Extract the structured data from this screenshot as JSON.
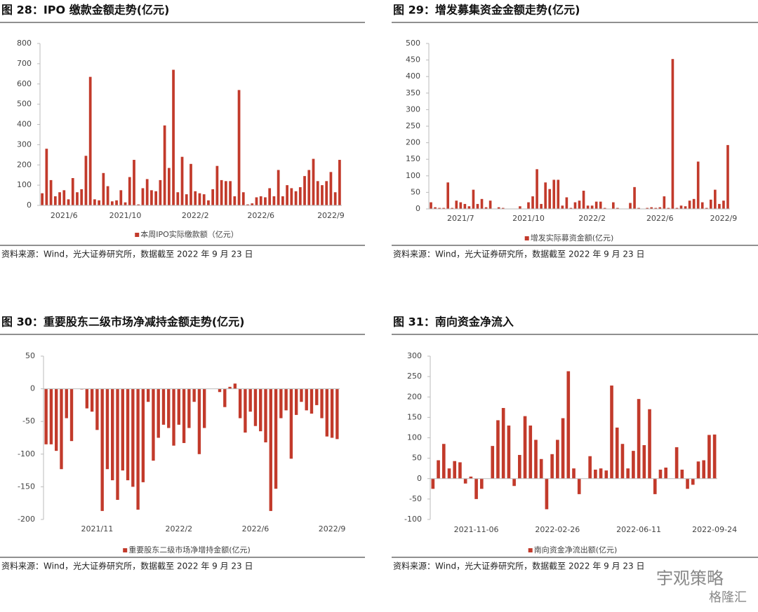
{
  "chart_data": [
    {
      "type": "bar",
      "title": "图 28：IPO 缴款金额走势(亿元)",
      "source": "资料来源：Wind，光大证券研究所，数据截至 2022 年 9 月 23 日",
      "categories": [
        null,
        null,
        null,
        null,
        null,
        "2021/6",
        null,
        null,
        null,
        null,
        null,
        null,
        null,
        null,
        null,
        null,
        null,
        null,
        null,
        "2021/10",
        null,
        null,
        null,
        null,
        null,
        null,
        null,
        null,
        null,
        null,
        null,
        null,
        null,
        null,
        null,
        "2022/2",
        null,
        null,
        null,
        null,
        null,
        null,
        null,
        null,
        null,
        null,
        null,
        null,
        null,
        null,
        "2022/6",
        null,
        null,
        null,
        null,
        null,
        null,
        null,
        null,
        null,
        null,
        null,
        null,
        null,
        null,
        null,
        "2022/9",
        null,
        null
      ],
      "series": [
        {
          "name": "本周IPO实际缴款额（亿元）",
          "color": "#c23a2b",
          "values": [
            60,
            280,
            125,
            45,
            65,
            75,
            30,
            135,
            65,
            80,
            245,
            635,
            30,
            25,
            160,
            95,
            20,
            25,
            75,
            15,
            140,
            225,
            5,
            85,
            130,
            75,
            70,
            125,
            395,
            185,
            670,
            65,
            240,
            55,
            205,
            70,
            60,
            55,
            25,
            80,
            195,
            125,
            120,
            120,
            45,
            570,
            65,
            5,
            10,
            40,
            45,
            40,
            85,
            45,
            175,
            45,
            100,
            85,
            70,
            90,
            145,
            175,
            230,
            120,
            100,
            120,
            165,
            65,
            225
          ]
        }
      ],
      "ylim": [
        0,
        800
      ],
      "yticks": [
        0,
        100,
        200,
        300,
        400,
        500,
        600,
        700,
        800
      ],
      "grid": false,
      "legend": "bottom"
    },
    {
      "type": "bar",
      "title": "图 29：增发募集资金金额走势(亿元)",
      "source": "资料来源：Wind，光大证券研究所，数据截至 2022 年 9 月 23 日",
      "categories": [
        null,
        null,
        null,
        null,
        null,
        null,
        null,
        "2021/7",
        null,
        null,
        null,
        null,
        null,
        null,
        null,
        null,
        null,
        null,
        null,
        null,
        null,
        null,
        null,
        "2021/10",
        null,
        null,
        null,
        null,
        null,
        null,
        null,
        null,
        null,
        null,
        null,
        null,
        null,
        null,
        "2022/2",
        null,
        null,
        null,
        null,
        null,
        null,
        null,
        null,
        null,
        null,
        null,
        null,
        null,
        null,
        null,
        "2022/6",
        null,
        null,
        null,
        null,
        null,
        null,
        null,
        null,
        null,
        null,
        null,
        null,
        null,
        null,
        "2022/9",
        null
      ],
      "series": [
        {
          "name": "增发实际募资金额(亿元)",
          "color": "#c23a2b",
          "values": [
            20,
            5,
            3,
            3,
            80,
            3,
            25,
            20,
            15,
            8,
            58,
            15,
            30,
            5,
            25,
            0,
            5,
            3,
            0,
            0,
            0,
            8,
            0,
            20,
            38,
            120,
            15,
            80,
            60,
            88,
            88,
            10,
            35,
            3,
            20,
            25,
            55,
            10,
            10,
            22,
            22,
            3,
            0,
            20,
            3,
            0,
            0,
            18,
            66,
            3,
            0,
            3,
            5,
            3,
            5,
            38,
            3,
            453,
            3,
            10,
            8,
            25,
            30,
            143,
            20,
            3,
            28,
            58,
            15,
            25,
            193
          ]
        }
      ],
      "ylim": [
        0,
        500
      ],
      "yticks": [
        0,
        50,
        100,
        150,
        200,
        250,
        300,
        350,
        400,
        450,
        500
      ],
      "grid": false,
      "legend": "bottom"
    },
    {
      "type": "bar",
      "title": "图 30：重要股东二级市场净减持金额走势(亿元)",
      "source": "资料来源：Wind，光大证券研究所，数据截至 2022 年 9 月 23 日",
      "categories": [
        null,
        null,
        null,
        null,
        null,
        null,
        null,
        null,
        null,
        null,
        "2021/11",
        null,
        null,
        null,
        null,
        null,
        null,
        null,
        null,
        null,
        null,
        null,
        null,
        null,
        null,
        null,
        "2022/2",
        null,
        null,
        null,
        null,
        null,
        null,
        null,
        null,
        null,
        null,
        null,
        null,
        null,
        null,
        "2022/6",
        null,
        null,
        null,
        null,
        null,
        null,
        null,
        null,
        null,
        null,
        null,
        null,
        null,
        null,
        "2022/9",
        null
      ],
      "series": [
        {
          "name": "重要股东二级市场净增持金额(亿元)",
          "color": "#c23a2b",
          "values": [
            -85,
            -85,
            -95,
            -123,
            -45,
            -80,
            0,
            -1,
            -30,
            -35,
            -63,
            -187,
            -123,
            -140,
            -170,
            -125,
            -140,
            -150,
            -185,
            -143,
            -20,
            -110,
            -75,
            -55,
            -60,
            -87,
            -55,
            -83,
            -60,
            -20,
            -100,
            -60,
            0,
            0,
            -5,
            -28,
            3,
            8,
            -45,
            -67,
            -35,
            -57,
            -65,
            -82,
            -187,
            -153,
            -45,
            -33,
            -107,
            -40,
            -20,
            -33,
            -38,
            -25,
            -45,
            -73,
            -75,
            -77
          ]
        }
      ],
      "ylim": [
        -200,
        50
      ],
      "yticks": [
        -200,
        -150,
        -100,
        -50,
        0,
        50
      ],
      "grid": false,
      "legend": "bottom"
    },
    {
      "type": "bar",
      "title": "图 31：南向资金净流入",
      "source": "资料来源：Wind，光大证券研究所，数据截至 2022 年 9 月 23 日",
      "categories": [
        null,
        null,
        null,
        null,
        null,
        null,
        null,
        null,
        "2021-11-06",
        null,
        null,
        null,
        null,
        null,
        null,
        null,
        null,
        null,
        null,
        null,
        null,
        null,
        null,
        "2022-02-26",
        null,
        null,
        null,
        null,
        null,
        null,
        null,
        null,
        null,
        null,
        null,
        null,
        null,
        null,
        "2022-06-11",
        null,
        null,
        null,
        null,
        null,
        null,
        null,
        null,
        null,
        null,
        null,
        null,
        null,
        "2022-09-24"
      ],
      "series": [
        {
          "name": "南向资金净流出额(亿元)",
          "color": "#c23a2b",
          "values": [
            -25,
            45,
            85,
            25,
            43,
            40,
            -12,
            5,
            -50,
            -25,
            0,
            80,
            143,
            173,
            130,
            -18,
            58,
            153,
            130,
            95,
            48,
            -75,
            60,
            95,
            148,
            263,
            25,
            -38,
            0,
            55,
            22,
            25,
            20,
            228,
            125,
            85,
            25,
            68,
            195,
            82,
            170,
            -38,
            22,
            27,
            0,
            77,
            22,
            -25,
            -15,
            42,
            45,
            107,
            108
          ]
        }
      ],
      "ylim": [
        -100,
        300
      ],
      "yticks": [
        -100,
        -50,
        0,
        50,
        100,
        150,
        200,
        250,
        300
      ],
      "grid": false,
      "legend": "bottom"
    }
  ],
  "watermark": {
    "account": "宇观策略",
    "platform": "格隆汇"
  }
}
